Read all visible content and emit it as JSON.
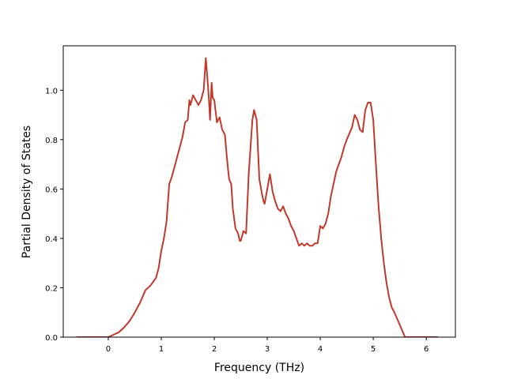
{
  "chart_data": {
    "type": "line",
    "title": "",
    "xlabel": "Frequency (THz)",
    "ylabel": "Partial Density of States",
    "xlim": [
      -0.85,
      6.55
    ],
    "ylim": [
      0.0,
      1.18
    ],
    "xticks": [
      0,
      1,
      2,
      3,
      4,
      5,
      6
    ],
    "xtick_labels": [
      "0",
      "1",
      "2",
      "3",
      "4",
      "5",
      "6"
    ],
    "yticks": [
      0.0,
      0.2,
      0.4,
      0.6,
      0.8,
      1.0
    ],
    "ytick_labels": [
      "0.0",
      "0.2",
      "0.4",
      "0.6",
      "0.8",
      "1.0"
    ],
    "grid": false,
    "series": [
      {
        "color": "#c0392b",
        "x": [
          -0.6,
          -0.3,
          0.0,
          0.1,
          0.2,
          0.3,
          0.4,
          0.5,
          0.6,
          0.7,
          0.8,
          0.9,
          0.95,
          1.0,
          1.05,
          1.1,
          1.15,
          1.2,
          1.3,
          1.35,
          1.4,
          1.45,
          1.5,
          1.53,
          1.55,
          1.6,
          1.7,
          1.75,
          1.8,
          1.84,
          1.87,
          1.9,
          1.92,
          1.95,
          1.97,
          2.0,
          2.05,
          2.1,
          2.15,
          2.2,
          2.25,
          2.28,
          2.32,
          2.35,
          2.4,
          2.45,
          2.48,
          2.5,
          2.55,
          2.6,
          2.65,
          2.7,
          2.72,
          2.75,
          2.8,
          2.85,
          2.9,
          2.93,
          2.95,
          3.0,
          3.05,
          3.1,
          3.15,
          3.2,
          3.25,
          3.3,
          3.35,
          3.4,
          3.45,
          3.5,
          3.55,
          3.6,
          3.65,
          3.7,
          3.75,
          3.8,
          3.85,
          3.9,
          3.95,
          4.0,
          4.05,
          4.1,
          4.15,
          4.2,
          4.3,
          4.4,
          4.45,
          4.5,
          4.6,
          4.65,
          4.7,
          4.75,
          4.8,
          4.85,
          4.9,
          4.95,
          5.0,
          5.05,
          5.1,
          5.15,
          5.2,
          5.25,
          5.3,
          5.35,
          5.4,
          5.5,
          5.6,
          5.65,
          5.7,
          5.8,
          6.0,
          6.22
        ],
        "values": [
          0.0,
          0.0,
          0.0,
          0.01,
          0.02,
          0.04,
          0.065,
          0.1,
          0.14,
          0.19,
          0.21,
          0.24,
          0.28,
          0.35,
          0.4,
          0.47,
          0.62,
          0.65,
          0.73,
          0.77,
          0.81,
          0.87,
          0.88,
          0.96,
          0.94,
          0.98,
          0.94,
          0.96,
          1.0,
          1.13,
          1.05,
          0.96,
          0.88,
          1.03,
          0.97,
          0.96,
          0.87,
          0.89,
          0.84,
          0.82,
          0.7,
          0.64,
          0.62,
          0.52,
          0.44,
          0.42,
          0.39,
          0.39,
          0.43,
          0.42,
          0.66,
          0.82,
          0.88,
          0.92,
          0.88,
          0.64,
          0.58,
          0.55,
          0.54,
          0.6,
          0.66,
          0.59,
          0.55,
          0.52,
          0.51,
          0.53,
          0.5,
          0.48,
          0.45,
          0.43,
          0.4,
          0.37,
          0.38,
          0.37,
          0.38,
          0.37,
          0.37,
          0.38,
          0.38,
          0.45,
          0.44,
          0.46,
          0.5,
          0.57,
          0.67,
          0.73,
          0.77,
          0.8,
          0.85,
          0.9,
          0.88,
          0.84,
          0.83,
          0.92,
          0.95,
          0.95,
          0.88,
          0.7,
          0.53,
          0.4,
          0.3,
          0.22,
          0.16,
          0.12,
          0.1,
          0.05,
          0.0,
          0.0,
          0.0,
          0.0,
          0.0,
          0.0
        ]
      }
    ]
  }
}
